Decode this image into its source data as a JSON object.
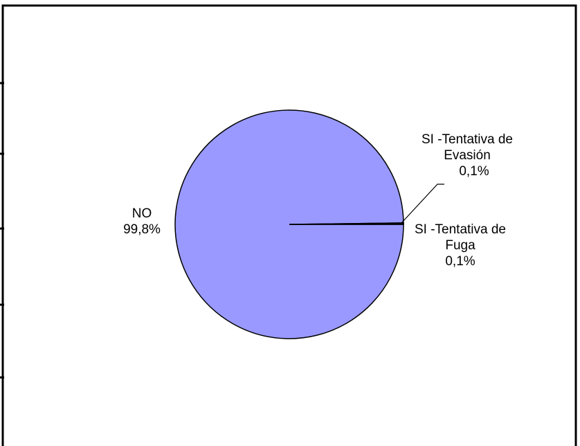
{
  "chart_data": {
    "type": "pie",
    "categories": [
      "NO",
      "SI -Tentativa de Evasión",
      "SI -Tentativa de Fuga"
    ],
    "values": [
      99.8,
      0.1,
      0.1
    ],
    "value_labels": [
      "99,8%",
      "0,1%",
      "0,1%"
    ],
    "color": "#9999ff"
  }
}
